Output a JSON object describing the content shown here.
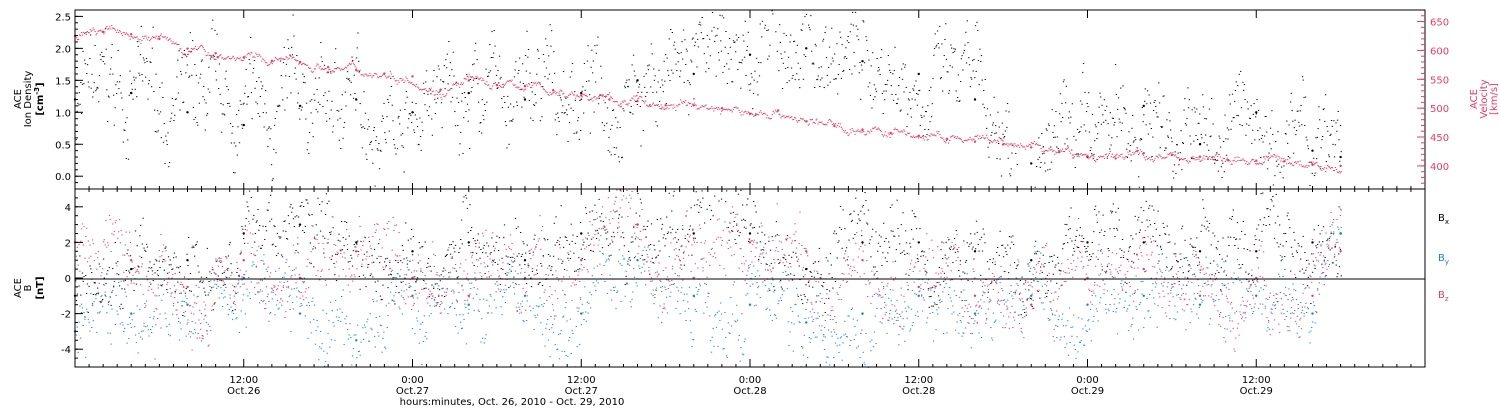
{
  "chart_data": [
    {
      "panel": "top",
      "type": "scatter",
      "y_left": {
        "label_lines": [
          "ACE",
          "Ion Density"
        ],
        "unit_pre": "[cm",
        "unit_sup": "-3",
        "unit_post": "]",
        "ylim": [
          -0.2,
          2.6
        ],
        "ticks": [
          "0.0",
          "0.5",
          "1.0",
          "1.5",
          "2.0",
          "2.5"
        ],
        "tick_values": [
          0.0,
          0.5,
          1.0,
          1.5,
          2.0,
          2.5
        ]
      },
      "y_right": {
        "label_lines": [
          "ACE",
          "Velocity"
        ],
        "unit": "[km/s]",
        "ylim": [
          360,
          670
        ],
        "ticks": [
          "400",
          "450",
          "500",
          "550",
          "600",
          "650"
        ],
        "tick_values": [
          400,
          450,
          500,
          550,
          600,
          650
        ],
        "color": "#e8396a"
      },
      "series": [
        {
          "axis": "left",
          "color": "#000000",
          "x": [
            0,
            4,
            8,
            12,
            16,
            20,
            24,
            28,
            32,
            36,
            40,
            44,
            48,
            52,
            56,
            60,
            64,
            68,
            72,
            76,
            80,
            84,
            88,
            90
          ],
          "y": [
            1.2,
            1.3,
            1.0,
            0.8,
            1.1,
            1.2,
            1.0,
            1.3,
            1.2,
            1.3,
            1.5,
            1.6,
            1.9,
            2.0,
            1.8,
            1.6,
            1.2,
            0.2,
            0.3,
            1.1,
            0.5,
            1.0,
            0.4,
            0.3
          ]
        },
        {
          "axis": "right",
          "color": "#e8396a",
          "x": [
            0,
            2,
            4,
            6,
            8,
            10,
            12,
            14,
            16,
            18,
            20,
            22,
            24,
            26,
            28,
            30,
            32,
            34,
            36,
            38,
            40,
            42,
            44,
            46,
            48,
            50,
            52,
            54,
            56,
            58,
            60,
            62,
            64,
            66,
            68,
            70,
            72,
            74,
            76,
            78,
            80,
            82,
            84,
            86,
            88,
            90
          ],
          "y": [
            625,
            632,
            628,
            620,
            603,
            595,
            588,
            582,
            580,
            571,
            566,
            560,
            555,
            532,
            548,
            540,
            538,
            531,
            522,
            515,
            512,
            505,
            505,
            500,
            490,
            496,
            477,
            469,
            463,
            457,
            452,
            447,
            442,
            437,
            432,
            424,
            417,
            413,
            422,
            419,
            416,
            410,
            409,
            408,
            402,
            400
          ]
        }
      ]
    },
    {
      "panel": "bottom",
      "type": "scatter",
      "y_left": {
        "label_lines": [
          "ACE",
          "B"
        ],
        "unit": "[nT]",
        "ylim": [
          -5,
          5
        ],
        "ticks": [
          "-4",
          "-2",
          "0",
          "2",
          "4"
        ],
        "tick_values": [
          -4,
          -2,
          0,
          2,
          4
        ]
      },
      "series": [
        {
          "name": "B",
          "sub": "x",
          "color": "#000000",
          "x": [
            0,
            4,
            8,
            12,
            16,
            20,
            24,
            28,
            32,
            36,
            40,
            44,
            48,
            52,
            56,
            60,
            64,
            68,
            72,
            76,
            80,
            84,
            88,
            90
          ],
          "y": [
            -1.0,
            0.5,
            1.0,
            2.5,
            3.0,
            2.0,
            1.5,
            2.0,
            1.0,
            2.5,
            3.0,
            2.5,
            2.5,
            0.5,
            2.0,
            2.0,
            1.5,
            1.0,
            2.0,
            2.0,
            1.5,
            1.5,
            2.0,
            2.5
          ]
        },
        {
          "name": "B",
          "sub": "y",
          "color": "#1a7fd4",
          "x": [
            0,
            4,
            8,
            12,
            16,
            20,
            24,
            28,
            32,
            36,
            40,
            44,
            48,
            52,
            56,
            60,
            64,
            68,
            72,
            76,
            80,
            84,
            88,
            90
          ],
          "y": [
            -3.0,
            -2.0,
            -1.5,
            0.0,
            -2.0,
            -3.5,
            -1.0,
            -1.5,
            -1.0,
            -2.0,
            1.0,
            -1.0,
            -1.5,
            -2.5,
            -2.0,
            -1.0,
            -2.0,
            -1.0,
            -1.5,
            -1.0,
            -1.5,
            -1.0,
            -2.0,
            2.5
          ]
        },
        {
          "name": "B",
          "sub": "z",
          "color": "#e8396a",
          "x": [
            0,
            4,
            8,
            12,
            16,
            20,
            24,
            28,
            32,
            36,
            40,
            44,
            48,
            52,
            56,
            60,
            64,
            68,
            72,
            76,
            80,
            84,
            88,
            90
          ],
          "y": [
            2.0,
            1.0,
            -0.5,
            1.0,
            0.0,
            1.5,
            0.0,
            -1.0,
            0.0,
            1.0,
            3.0,
            0.0,
            2.0,
            1.5,
            1.0,
            -0.5,
            -1.0,
            -1.5,
            0.0,
            0.5,
            -1.0,
            0.0,
            -1.0,
            1.5
          ]
        }
      ]
    }
  ],
  "x_axis": {
    "hours_range": [
      0,
      96
    ],
    "ticks": [
      {
        "h": 12,
        "time": "12:00",
        "date": "Oct.26"
      },
      {
        "h": 24,
        "time": "0:00",
        "date": "Oct.27"
      },
      {
        "h": 36,
        "time": "12:00",
        "date": "Oct.27"
      },
      {
        "h": 48,
        "time": "0:00",
        "date": "Oct.28"
      },
      {
        "h": 60,
        "time": "12:00",
        "date": "Oct.28"
      },
      {
        "h": 72,
        "time": "0:00",
        "date": "Oct.29"
      },
      {
        "h": 84,
        "time": "12:00",
        "date": "Oct.29"
      }
    ],
    "xlabel": "hours:minutes, Oct. 26, 2010 - Oct. 29, 2010"
  }
}
